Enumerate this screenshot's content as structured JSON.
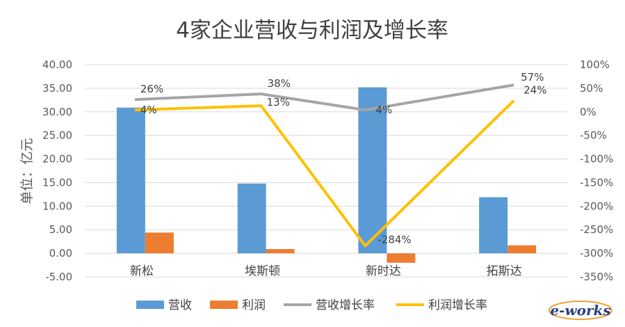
{
  "watermark": "e-works",
  "chart_data": {
    "type": "bar",
    "title": "4家企业营收与利润及增长率",
    "ylabel": "单位：亿元",
    "ylim": [
      -5,
      40
    ],
    "y_ticks": [
      "40.00",
      "35.00",
      "30.00",
      "25.00",
      "20.00",
      "15.00",
      "10.00",
      "5.00",
      "0.00",
      "-5.00"
    ],
    "y2lim": [
      -350,
      100
    ],
    "y2_ticks": [
      "100%",
      "50%",
      "0%",
      "-50%",
      "-100%",
      "-150%",
      "-200%",
      "-250%",
      "-300%",
      "-350%"
    ],
    "categories": [
      "新松",
      "埃斯顿",
      "新时达",
      "拓斯达"
    ],
    "series": [
      {
        "name": "营收",
        "type": "bar",
        "axis": "left",
        "color": "#5b9bd5",
        "values": [
          30.9,
          14.8,
          35.2,
          11.9
        ]
      },
      {
        "name": "利润",
        "type": "bar",
        "axis": "left",
        "color": "#ed7d31",
        "values": [
          4.4,
          0.9,
          -2.0,
          1.7
        ]
      },
      {
        "name": "营收增长率",
        "type": "line",
        "axis": "right",
        "color": "#a5a5a5",
        "values": [
          26,
          38,
          4,
          57
        ],
        "labels": [
          "26%",
          "38%",
          "4%",
          "57%"
        ]
      },
      {
        "name": "利润增长率",
        "type": "line",
        "axis": "right",
        "color": "#ffc000",
        "values": [
          4,
          13,
          -284,
          24
        ],
        "labels": [
          "4%",
          "13%",
          "-284%",
          "24%"
        ]
      }
    ],
    "grid": true,
    "legend": "bottom"
  }
}
